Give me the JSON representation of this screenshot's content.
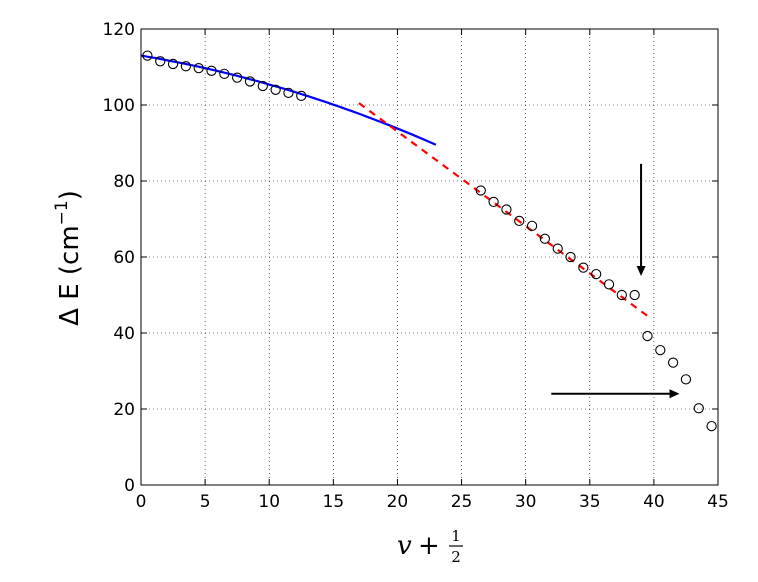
{
  "chart_data": {
    "type": "scatter",
    "xlabel": {
      "main": "v",
      "plus": "+",
      "frac_num": "1",
      "frac_den": "2"
    },
    "ylabel": {
      "prefix": "Δ E (cm",
      "sup": "−1",
      "suffix": ")"
    },
    "xlim": [
      0,
      45
    ],
    "ylim": [
      0,
      120
    ],
    "xticks": [
      "0",
      "5",
      "10",
      "15",
      "20",
      "25",
      "30",
      "35",
      "40",
      "45"
    ],
    "yticks": [
      "0",
      "20",
      "40",
      "60",
      "80",
      "100",
      "120"
    ],
    "grid": true,
    "points": [
      [
        0.5,
        113.0
      ],
      [
        1.5,
        111.5
      ],
      [
        2.5,
        110.8
      ],
      [
        3.5,
        110.2
      ],
      [
        4.5,
        109.7
      ],
      [
        5.5,
        109.0
      ],
      [
        6.5,
        108.2
      ],
      [
        7.5,
        107.2
      ],
      [
        8.5,
        106.2
      ],
      [
        9.5,
        105.0
      ],
      [
        10.5,
        104.0
      ],
      [
        11.5,
        103.2
      ],
      [
        12.5,
        102.4
      ],
      [
        26.5,
        77.5
      ],
      [
        27.5,
        74.5
      ],
      [
        28.5,
        72.5
      ],
      [
        29.5,
        69.5
      ],
      [
        30.5,
        68.2
      ],
      [
        31.5,
        64.8
      ],
      [
        32.5,
        62.2
      ],
      [
        33.5,
        60.0
      ],
      [
        34.5,
        57.2
      ],
      [
        35.5,
        55.5
      ],
      [
        36.5,
        52.8
      ],
      [
        37.5,
        50.0
      ],
      [
        38.5,
        50.0
      ],
      [
        39.5,
        39.2
      ],
      [
        40.5,
        35.5
      ],
      [
        41.5,
        32.2
      ],
      [
        42.5,
        27.8
      ],
      [
        43.5,
        20.2
      ],
      [
        44.5,
        15.5
      ]
    ],
    "blue_fit": {
      "color": "#0000ff",
      "x_range": [
        0,
        23
      ],
      "coeffs": [
        113.0,
        -0.56,
        -0.02
      ]
    },
    "red_fit": {
      "color": "#ff0000",
      "x_range": [
        17,
        39.5
      ],
      "points": [
        [
          17,
          100.5
        ],
        [
          39.5,
          44.5
        ]
      ]
    },
    "annotations": [
      {
        "kind": "arrow",
        "from": [
          39,
          84.5
        ],
        "to": [
          39,
          55.0
        ]
      },
      {
        "kind": "arrow",
        "from": [
          32,
          24.0
        ],
        "to": [
          42,
          24.0
        ]
      }
    ]
  }
}
